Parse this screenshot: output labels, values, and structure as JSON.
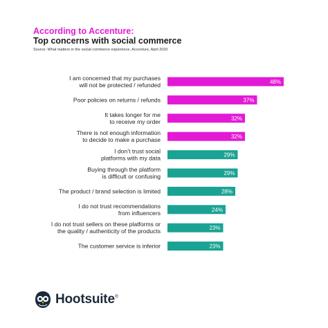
{
  "header": {
    "title_accent": "According to Accenture:",
    "title_main": "Top concerns with social commerce",
    "source": "Source: What matters in the social commerce experience, Accenture, April 2020"
  },
  "brand": {
    "name": "Hootsuite",
    "mark": "®"
  },
  "colors": {
    "magenta": "#e31ad5",
    "teal": "#1aa393",
    "text": "#1f1f1f"
  },
  "chart_data": {
    "type": "bar",
    "orientation": "horizontal",
    "categories": [
      [
        "I am concerned that my purchases",
        "will not be protected / refunded"
      ],
      [
        "Poor policies on returns / refunds"
      ],
      [
        "It takes longer for me",
        "to receive my order"
      ],
      [
        "There is not enough information",
        "to decide to make a purchase"
      ],
      [
        "I don’t trust social",
        "platforms with my data"
      ],
      [
        "Buying through the platform",
        "is difficult or confusing"
      ],
      [
        "The product / brand selection is limited"
      ],
      [
        "I do not trust recommendations",
        "from influencers"
      ],
      [
        "I do not trust sellers on these platforms or",
        "the quality / authenticity of the products"
      ],
      [
        "The customer service is inferior"
      ]
    ],
    "values": [
      48,
      37,
      32,
      32,
      29,
      29,
      28,
      24,
      23,
      23
    ],
    "value_labels": [
      "48%",
      "37%",
      "32%",
      "32%",
      "29%",
      "29%",
      "28%",
      "24%",
      "23%",
      "23%"
    ],
    "bar_colors": [
      "magenta",
      "magenta",
      "magenta",
      "magenta",
      "teal",
      "teal",
      "teal",
      "teal",
      "teal",
      "teal"
    ],
    "xlim": [
      0,
      48
    ],
    "grid": false,
    "legend": "none"
  }
}
